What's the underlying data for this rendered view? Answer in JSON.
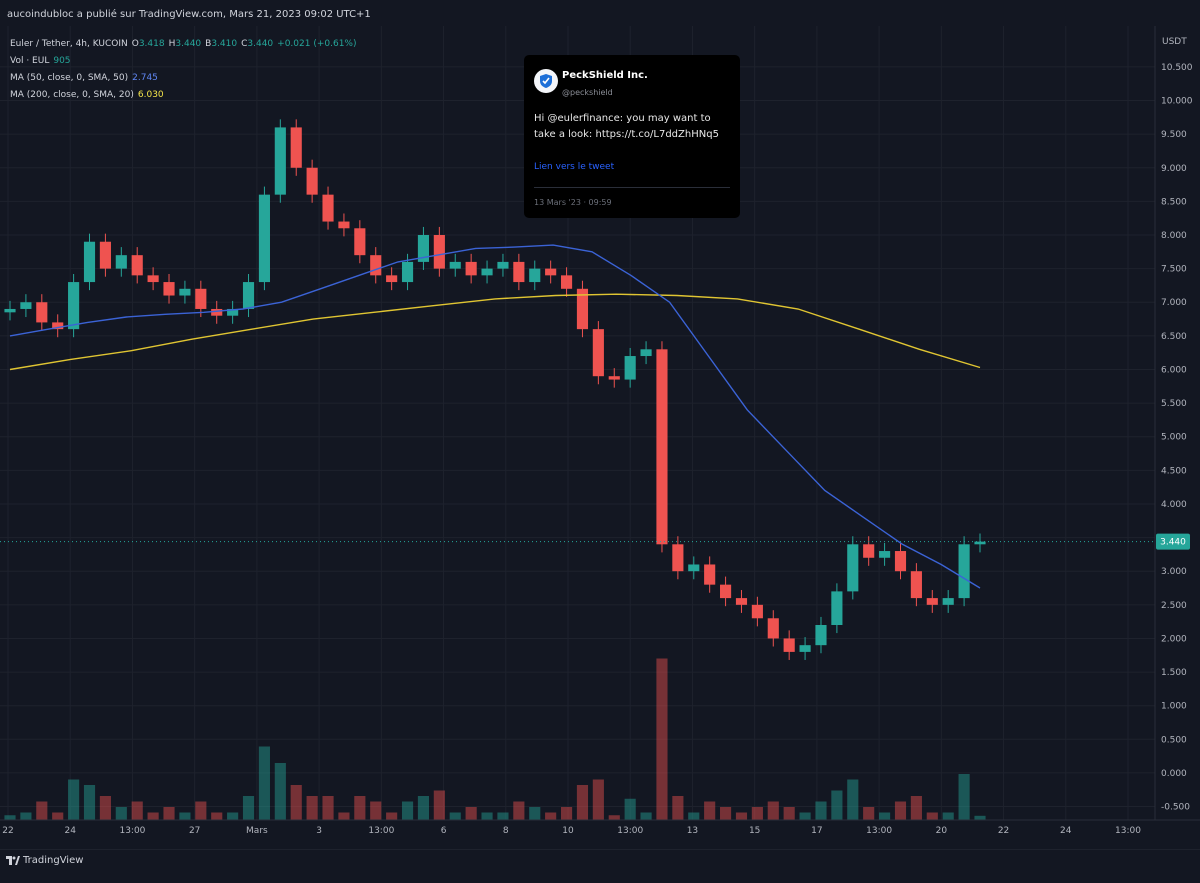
{
  "header": {
    "published_by": "aucoindubloc a publié sur TradingView.com, Mars 21, 2023 09:02 UTC+1"
  },
  "legend": {
    "symbol": "Euler / Tether, 4h, KUCOIN",
    "ohlc": [
      {
        "key": "O",
        "value": "3.418"
      },
      {
        "key": "H",
        "value": "3.440"
      },
      {
        "key": "B",
        "value": "3.410"
      },
      {
        "key": "C",
        "value": "3.440"
      }
    ],
    "change": "+0.021 (+0.61%)",
    "volume_label": "Vol · EUL",
    "volume_value": "905",
    "ma50_label": "MA (50, close, 0, SMA, 50)",
    "ma50_value": "2.745",
    "ma200_label": "MA (200, close, 0, SMA, 20)",
    "ma200_value": "6.030"
  },
  "tweet": {
    "name": "PeckShield Inc.",
    "handle": "@peckshield",
    "text": "Hi @eulerfinance: you may want to take a look: https://t.co/L7ddZhHNq5",
    "link": "Lien vers le tweet",
    "date": "13 Mars '23 · 09:59"
  },
  "footer": {
    "logo": "TradingView"
  },
  "colors": {
    "background": "#131722",
    "up": "#26a69a",
    "down": "#ef5350",
    "ma50": "#3b63d6",
    "ma200": "#e0c532",
    "grid": "#1e222d"
  },
  "chart_data": {
    "type": "candlestick",
    "currency": "USDT",
    "last_price": "3.440",
    "ylim": [
      -0.7,
      10.9
    ],
    "y_ticks": [
      "10.500",
      "10.000",
      "9.500",
      "9.000",
      "8.500",
      "8.000",
      "7.500",
      "7.000",
      "6.500",
      "6.000",
      "5.500",
      "5.000",
      "4.500",
      "4.000",
      "3.500",
      "3.000",
      "2.500",
      "2.000",
      "1.500",
      "1.000",
      "0.500",
      "0.000",
      "-0.500"
    ],
    "x_ticks": [
      "22",
      "24",
      "13:00",
      "27",
      "Mars",
      "3",
      "13:00",
      "6",
      "8",
      "10",
      "13:00",
      "13",
      "15",
      "17",
      "13:00",
      "20",
      "22",
      "24",
      "13:00"
    ],
    "price_path": [
      [
        6.9,
        0
      ],
      [
        7.0,
        0
      ],
      [
        6.7,
        0
      ],
      [
        6.6,
        1
      ],
      [
        7.3,
        0
      ],
      [
        7.9,
        0
      ],
      [
        7.5,
        0
      ],
      [
        7.7,
        0
      ],
      [
        7.4,
        1
      ],
      [
        7.3,
        0
      ],
      [
        7.1,
        0
      ],
      [
        7.2,
        0
      ],
      [
        6.9,
        1
      ],
      [
        6.8,
        0
      ],
      [
        6.9,
        0
      ],
      [
        7.3,
        0
      ],
      [
        8.6,
        0
      ],
      [
        9.6,
        0
      ],
      [
        9.0,
        1
      ],
      [
        8.6,
        1
      ],
      [
        8.2,
        1
      ],
      [
        8.1,
        0
      ],
      [
        7.7,
        1
      ],
      [
        7.4,
        1
      ],
      [
        7.3,
        0
      ],
      [
        7.6,
        0
      ],
      [
        8.0,
        0
      ],
      [
        7.5,
        1
      ],
      [
        7.6,
        0
      ],
      [
        7.4,
        0
      ],
      [
        7.5,
        0
      ],
      [
        7.6,
        0
      ],
      [
        7.3,
        1
      ],
      [
        7.5,
        0
      ],
      [
        7.4,
        0
      ],
      [
        7.2,
        1
      ],
      [
        6.6,
        1
      ],
      [
        5.9,
        1
      ],
      [
        5.85,
        0
      ],
      [
        6.2,
        0
      ],
      [
        6.3,
        0
      ],
      [
        3.4,
        1
      ],
      [
        3.0,
        1
      ],
      [
        3.1,
        0
      ],
      [
        2.8,
        1
      ],
      [
        2.6,
        1
      ],
      [
        2.5,
        1
      ],
      [
        2.3,
        1
      ],
      [
        2.0,
        1
      ],
      [
        1.8,
        1
      ],
      [
        1.9,
        0
      ],
      [
        2.2,
        0
      ],
      [
        2.7,
        0
      ],
      [
        3.4,
        0
      ],
      [
        3.2,
        1
      ],
      [
        3.3,
        0
      ],
      [
        3.0,
        1
      ],
      [
        2.6,
        1
      ],
      [
        2.5,
        1
      ],
      [
        2.6,
        0
      ],
      [
        3.4,
        0
      ],
      [
        3.44,
        0
      ]
    ],
    "ma50": [
      6.5,
      6.6,
      6.7,
      6.78,
      6.82,
      6.85,
      6.9,
      7.0,
      7.2,
      7.4,
      7.6,
      7.7,
      7.8,
      7.82,
      7.85,
      7.75,
      7.4,
      7.0,
      6.2,
      5.4,
      4.8,
      4.2,
      3.8,
      3.4,
      3.1,
      2.75
    ],
    "ma200": [
      6.0,
      6.15,
      6.28,
      6.45,
      6.6,
      6.75,
      6.85,
      6.95,
      7.05,
      7.1,
      7.12,
      7.1,
      7.05,
      6.9,
      6.6,
      6.3,
      6.03
    ]
  }
}
